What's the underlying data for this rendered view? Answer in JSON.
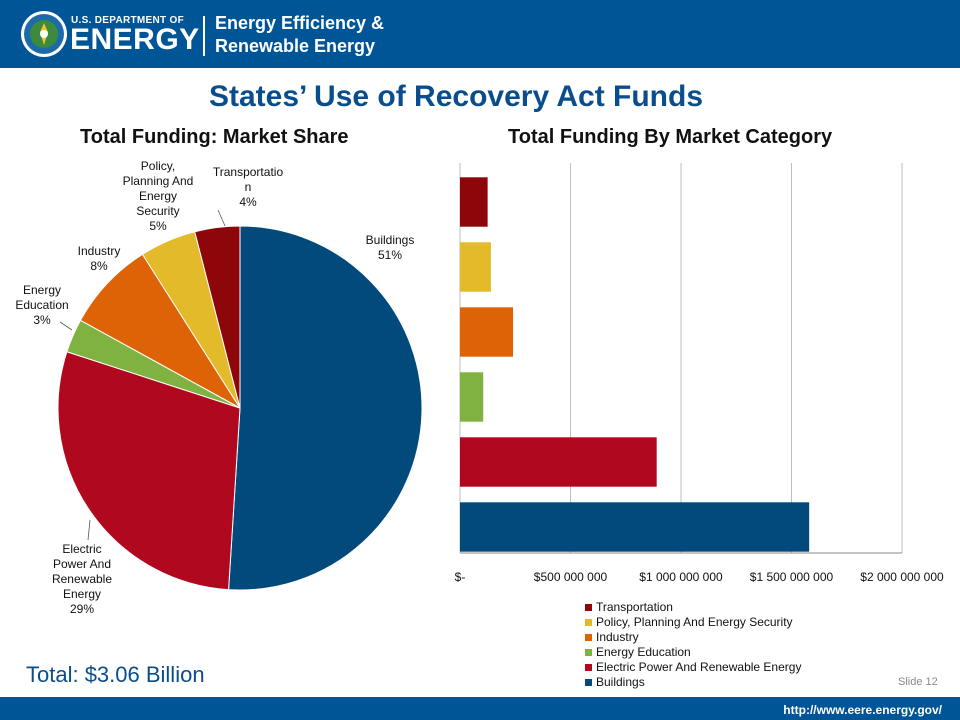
{
  "header": {
    "dept_small": "U.S. DEPARTMENT OF",
    "dept_big": "ENERGY",
    "office_line1": "Energy Efficiency &",
    "office_line2": "Renewable Energy"
  },
  "slide": {
    "title": "States’ Use of Recovery Act Funds",
    "total": "Total: $3.06 Billion",
    "slide_number": "Slide 12",
    "url": "http://www.eere.energy.gov/"
  },
  "colors": {
    "brand_blue": "#005596",
    "buildings": "#034a7c",
    "electric": "#b0091f",
    "education": "#7fb241",
    "industry": "#dd6306",
    "policy": "#e3ba29",
    "transportation": "#8d0609"
  },
  "chart_data": [
    {
      "type": "pie",
      "title": "Total Funding: Market Share",
      "slices": [
        {
          "label": "Buildings",
          "pct_label": "51%",
          "value": 51,
          "color": "#034a7c"
        },
        {
          "label": "Electric Power And Renewable Energy",
          "pct_label": "29%",
          "value": 29,
          "color": "#b0091f"
        },
        {
          "label": "Energy Education",
          "pct_label": "3%",
          "value": 3,
          "color": "#7fb241"
        },
        {
          "label": "Industry",
          "pct_label": "8%",
          "value": 8,
          "color": "#dd6306"
        },
        {
          "label": "Policy, Planning And Energy Security",
          "pct_label": "5%",
          "value": 5,
          "color": "#e3ba29"
        },
        {
          "label": "Transportation",
          "pct_label": "4%",
          "value": 4,
          "color": "#8d0609"
        }
      ]
    },
    {
      "type": "bar",
      "orientation": "horizontal",
      "title": "Total Funding By Market Category",
      "categories": [
        "Transportation",
        "Policy, Planning And Energy Security",
        "Industry",
        "Energy Education",
        "Electric Power And Renewable Energy",
        "Buildings"
      ],
      "values": [
        125000000,
        140000000,
        240000000,
        105000000,
        890000000,
        1580000000
      ],
      "colors": [
        "#8d0609",
        "#e3ba29",
        "#dd6306",
        "#7fb241",
        "#b0091f",
        "#034a7c"
      ],
      "xlim": [
        0,
        2000000000
      ],
      "ticks": [
        0,
        500000000,
        1000000000,
        1500000000,
        2000000000
      ],
      "tick_labels": [
        "$-",
        "$500 000 000",
        "$1 000 000 000",
        "$1 500 000 000",
        "$2 000 000 000"
      ],
      "grid": true,
      "legend": {
        "placement": "bottom",
        "entries": [
          {
            "label": "Transportation",
            "color": "#8d0609"
          },
          {
            "label": "Policy, Planning And Energy Security",
            "color": "#e3ba29"
          },
          {
            "label": "Industry",
            "color": "#dd6306"
          },
          {
            "label": "Energy Education",
            "color": "#7fb241"
          },
          {
            "label": "Electric Power And Renewable Energy",
            "color": "#b0091f"
          },
          {
            "label": "Buildings",
            "color": "#034a7c"
          }
        ]
      }
    }
  ]
}
